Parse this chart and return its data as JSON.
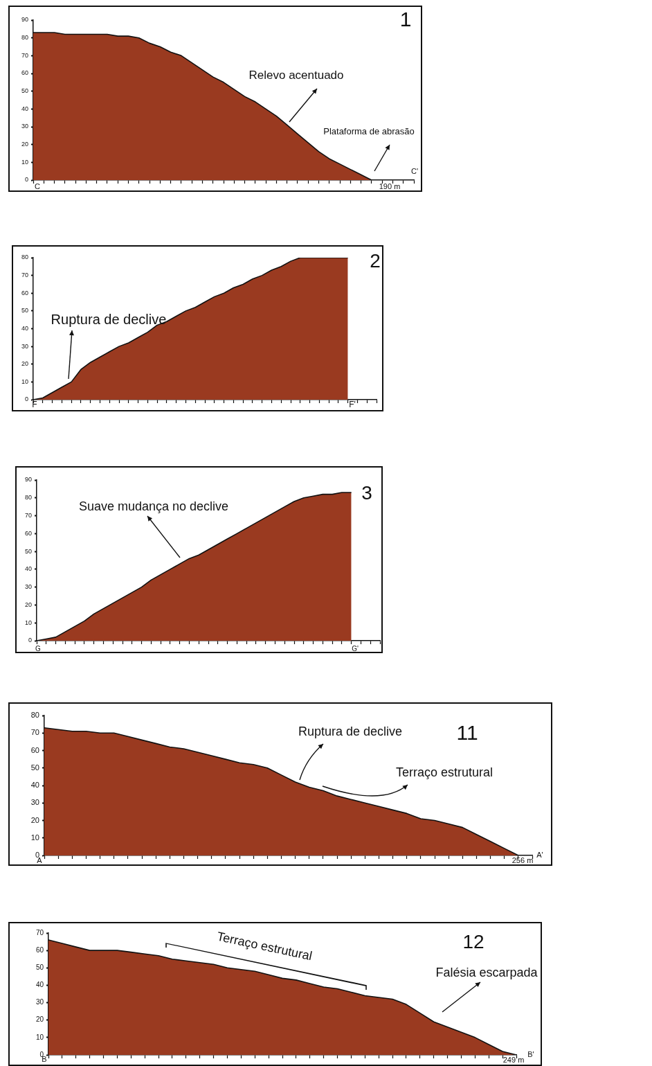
{
  "chart_data": [
    {
      "type": "area",
      "title": "1",
      "categories": [
        null,
        null,
        null,
        null,
        null,
        null,
        null,
        null,
        null,
        null,
        null,
        null,
        null,
        null,
        null,
        null,
        null,
        null,
        null,
        null,
        null,
        null,
        null,
        null,
        null,
        null,
        null,
        null,
        null,
        null,
        null,
        null,
        null,
        null,
        null,
        null,
        null
      ],
      "series": [
        {
          "color": "#9a3a20",
          "values": [
            83,
            83,
            83,
            82,
            82,
            82,
            82,
            82,
            81,
            81,
            80,
            77,
            75,
            72,
            70,
            66,
            62,
            58,
            55,
            51,
            47,
            44,
            40,
            36,
            31,
            26,
            21,
            16,
            12,
            9,
            6,
            3,
            0,
            null,
            null,
            null,
            null
          ]
        }
      ],
      "ylim": [
        0,
        90
      ],
      "yticks": [
        0,
        10,
        20,
        30,
        40,
        50,
        60,
        70,
        80,
        90
      ],
      "legend": false,
      "annotations": [
        "Relevo acentuado",
        "Plataforma de abrasão",
        "C",
        "C'",
        "190 m"
      ]
    },
    {
      "type": "area",
      "title": "2",
      "categories": [
        null,
        null,
        null,
        null,
        null,
        null,
        null,
        null,
        null,
        null,
        null,
        null,
        null,
        null,
        null,
        null,
        null,
        null,
        null,
        null,
        null,
        null,
        null,
        null,
        null,
        null,
        null,
        null,
        null,
        null,
        null,
        null,
        null,
        null,
        null,
        null,
        null
      ],
      "series": [
        {
          "color": "#9a3a20",
          "values": [
            0,
            1,
            4,
            7,
            10,
            17,
            21,
            24,
            27,
            30,
            32,
            35,
            38,
            42,
            44,
            47,
            50,
            52,
            55,
            58,
            60,
            63,
            65,
            68,
            70,
            73,
            75,
            78,
            80,
            80,
            80,
            80,
            80,
            80,
            null,
            null,
            null
          ]
        }
      ],
      "ylim": [
        0,
        80
      ],
      "yticks": [
        0,
        10,
        20,
        30,
        40,
        50,
        60,
        70,
        80
      ],
      "legend": false,
      "annotations": [
        "Ruptura de declive",
        "F",
        "F'"
      ]
    },
    {
      "type": "area",
      "title": "3",
      "categories": [
        null,
        null,
        null,
        null,
        null,
        null,
        null,
        null,
        null,
        null,
        null,
        null,
        null,
        null,
        null,
        null,
        null,
        null,
        null,
        null,
        null,
        null,
        null,
        null,
        null,
        null,
        null,
        null,
        null,
        null,
        null,
        null,
        null,
        null,
        null,
        null,
        null
      ],
      "series": [
        {
          "color": "#9a3a20",
          "values": [
            0,
            1,
            2,
            5,
            8,
            11,
            15,
            18,
            21,
            24,
            27,
            30,
            34,
            37,
            40,
            43,
            46,
            48,
            51,
            54,
            57,
            60,
            63,
            66,
            69,
            72,
            75,
            78,
            80,
            81,
            82,
            82,
            83,
            83,
            null,
            null,
            null
          ]
        }
      ],
      "ylim": [
        0,
        90
      ],
      "yticks": [
        0,
        10,
        20,
        30,
        40,
        50,
        60,
        70,
        80,
        90
      ],
      "legend": false,
      "annotations": [
        "Suave mudança no declive",
        "G",
        "G'"
      ]
    },
    {
      "type": "area",
      "title": "11",
      "categories": [
        null,
        null,
        null,
        null,
        null,
        null,
        null,
        null,
        null,
        null,
        null,
        null,
        null,
        null,
        null,
        null,
        null,
        null,
        null,
        null,
        null,
        null,
        null,
        null,
        null,
        null,
        null,
        null,
        null,
        null,
        null,
        null,
        null,
        null,
        null,
        null
      ],
      "series": [
        {
          "color": "#9a3a20",
          "values": [
            73,
            72,
            71,
            71,
            70,
            70,
            68,
            66,
            64,
            62,
            61,
            59,
            57,
            55,
            53,
            52,
            50,
            46,
            42,
            39,
            37,
            34,
            32,
            30,
            28,
            26,
            24,
            21,
            20,
            18,
            16,
            12,
            8,
            4,
            0,
            null
          ]
        }
      ],
      "ylim": [
        0,
        80
      ],
      "yticks": [
        0,
        10,
        20,
        30,
        40,
        50,
        60,
        70,
        80
      ],
      "legend": false,
      "annotations": [
        "Ruptura de declive",
        "Terraço estrutural",
        "A",
        "A'",
        "256 m"
      ]
    },
    {
      "type": "area",
      "title": "12",
      "categories": [
        null,
        null,
        null,
        null,
        null,
        null,
        null,
        null,
        null,
        null,
        null,
        null,
        null,
        null,
        null,
        null,
        null,
        null,
        null,
        null,
        null,
        null,
        null,
        null,
        null,
        null,
        null,
        null,
        null,
        null,
        null,
        null,
        null,
        null,
        null
      ],
      "series": [
        {
          "color": "#9a3a20",
          "values": [
            66,
            64,
            62,
            60,
            60,
            60,
            59,
            58,
            57,
            55,
            54,
            53,
            52,
            50,
            49,
            48,
            46,
            44,
            43,
            41,
            39,
            38,
            36,
            34,
            33,
            32,
            29,
            24,
            19,
            16,
            13,
            10,
            6,
            2,
            0
          ]
        }
      ],
      "ylim": [
        0,
        70
      ],
      "yticks": [
        0,
        10,
        20,
        30,
        40,
        50,
        60,
        70
      ],
      "legend": false,
      "annotations": [
        "Terraço estrutural",
        "Falésia escarpada",
        "B",
        "B'",
        "249 m"
      ]
    }
  ]
}
